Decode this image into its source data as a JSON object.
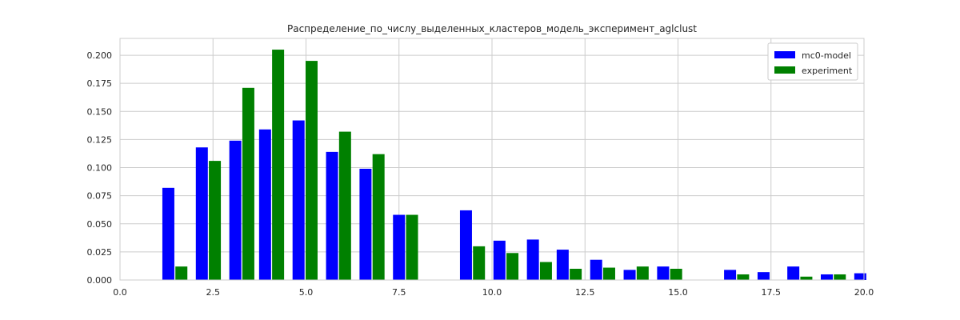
{
  "chart_data": {
    "type": "bar",
    "title": "Распределение_по_числу_выделенных_кластеров_модель_эксперимент_aglclust",
    "xlabel": "",
    "ylabel": "",
    "xlim": [
      0.0,
      20.0
    ],
    "ylim": [
      0.0,
      0.215
    ],
    "x_ticks": [
      0.0,
      2.5,
      5.0,
      7.5,
      10.0,
      12.5,
      15.0,
      17.5,
      20.0
    ],
    "x_tick_labels": [
      "0.0",
      "2.5",
      "5.0",
      "7.5",
      "10.0",
      "12.5",
      "15.0",
      "17.5",
      "20.0"
    ],
    "y_ticks": [
      0.0,
      0.025,
      0.05,
      0.075,
      0.1,
      0.125,
      0.15,
      0.175,
      0.2
    ],
    "y_tick_labels": [
      "0.000",
      "0.025",
      "0.050",
      "0.075",
      "0.100",
      "0.125",
      "0.150",
      "0.175",
      "0.200"
    ],
    "grid": true,
    "legend_position": "top-right",
    "series": [
      {
        "name": "mc0-model",
        "color": "#0000ff",
        "x": [
          1.3,
          2.2,
          3.1,
          3.9,
          4.8,
          5.7,
          6.6,
          7.5,
          9.3,
          10.2,
          11.1,
          11.9,
          12.8,
          13.7,
          14.6,
          16.4,
          17.3,
          18.1,
          19.0,
          19.9
        ],
        "values": [
          0.082,
          0.118,
          0.124,
          0.134,
          0.142,
          0.114,
          0.099,
          0.058,
          0.062,
          0.035,
          0.036,
          0.027,
          0.018,
          0.009,
          0.012,
          0.009,
          0.007,
          0.012,
          0.005,
          0.006
        ]
      },
      {
        "name": "experiment",
        "color": "#008000",
        "x": [
          1.65,
          2.55,
          3.45,
          4.25,
          5.15,
          6.05,
          6.95,
          7.85,
          9.65,
          10.55,
          11.45,
          12.25,
          13.15,
          14.05,
          14.95,
          16.75,
          18.45,
          19.35
        ],
        "values": [
          0.012,
          0.106,
          0.171,
          0.205,
          0.195,
          0.132,
          0.112,
          0.058,
          0.03,
          0.024,
          0.016,
          0.01,
          0.011,
          0.012,
          0.01,
          0.005,
          0.003,
          0.005
        ]
      }
    ]
  }
}
